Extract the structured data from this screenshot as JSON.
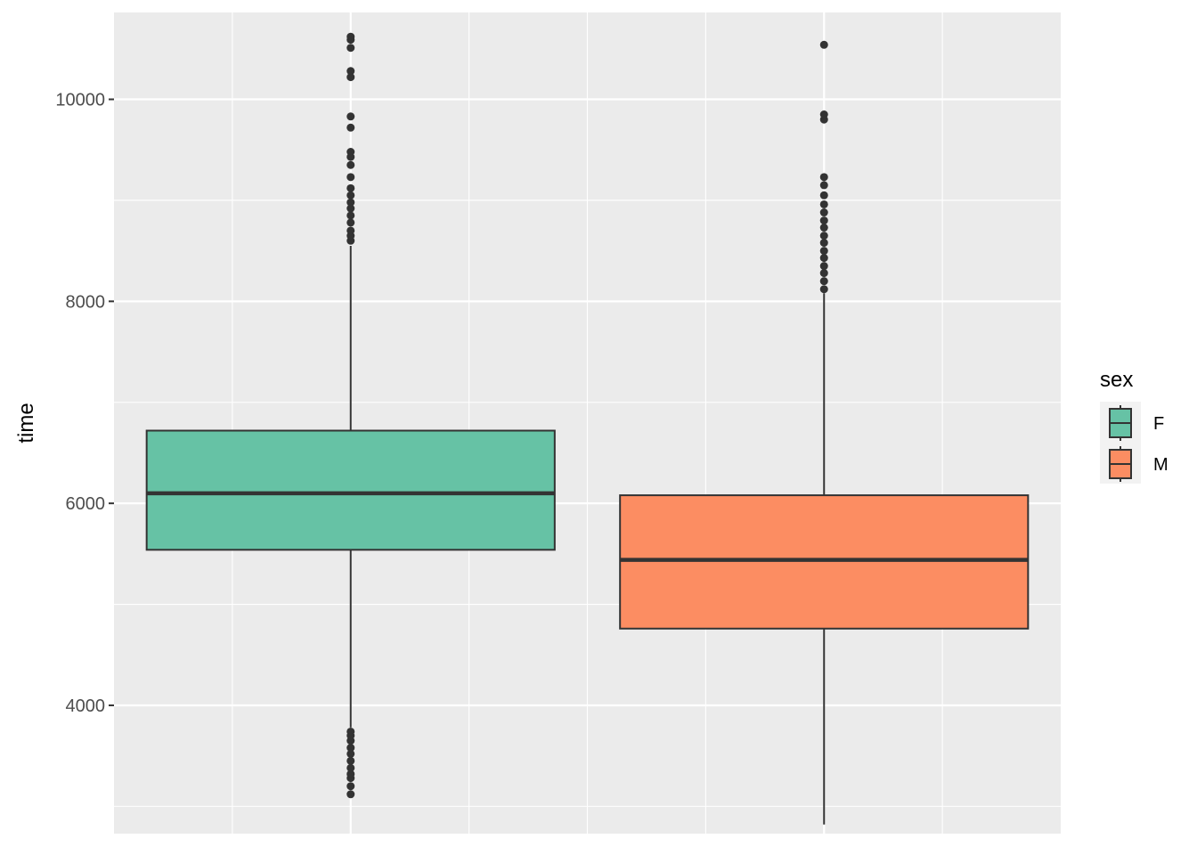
{
  "chart_data": {
    "type": "boxplot",
    "title": "",
    "xlabel": "",
    "ylabel": "time",
    "ylim": [
      2730,
      10860
    ],
    "y_ticks": [
      4000,
      6000,
      8000,
      10000
    ],
    "y_tick_labels": [
      "4000",
      "6000",
      "8000",
      "10000"
    ],
    "grid": true,
    "legend": {
      "title": "sex",
      "position": "right"
    },
    "series": [
      {
        "name": "F",
        "color": "#66c2a5",
        "q1": 5540,
        "median": 6100,
        "q3": 6720,
        "whisker_low": 3780,
        "whisker_high": 8550,
        "outliers": [
          3120,
          3200,
          3280,
          3320,
          3380,
          3450,
          3520,
          3580,
          3650,
          3700,
          3740,
          8600,
          8650,
          8700,
          8780,
          8850,
          8920,
          8980,
          9050,
          9120,
          9230,
          9350,
          9430,
          9480,
          9720,
          9830,
          10220,
          10280,
          10510,
          10590,
          10620
        ]
      },
      {
        "name": "M",
        "color": "#fc8d62",
        "q1": 4760,
        "median": 5440,
        "q3": 6080,
        "whisker_low": 2820,
        "whisker_high": 8080,
        "outliers": [
          8120,
          8200,
          8280,
          8350,
          8430,
          8500,
          8580,
          8650,
          8730,
          8800,
          8880,
          8960,
          9050,
          9150,
          9230,
          9800,
          9850,
          10540
        ]
      }
    ]
  }
}
